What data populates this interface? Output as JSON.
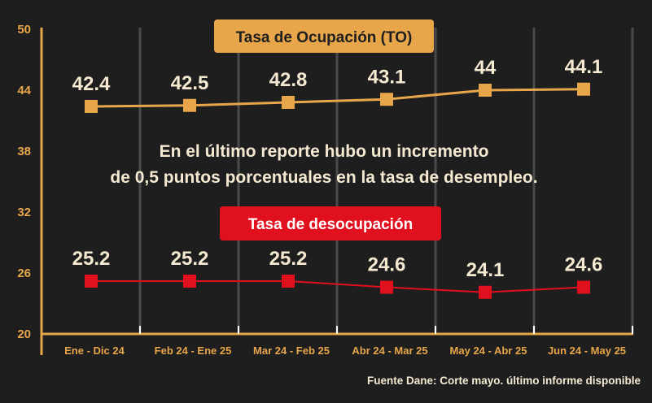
{
  "chart_data": {
    "type": "line",
    "categories": [
      "Ene - Dic 24",
      "Feb 24 - Ene 25",
      "Mar 24 - Feb 25",
      "Abr 24 - Mar 25",
      "May 24 - Abr 25",
      "Jun 24 - May 25"
    ],
    "series": [
      {
        "name": "Tasa de Ocupación (TO)",
        "values": [
          42.4,
          42.5,
          42.8,
          43.1,
          44,
          44.1
        ],
        "labels": [
          "42.4",
          "42.5",
          "42.8",
          "43.1",
          "44",
          "44.1"
        ],
        "color": "#e8a64a"
      },
      {
        "name": "Tasa de desocupación",
        "values": [
          25.2,
          25.2,
          25.2,
          24.6,
          24.1,
          24.6
        ],
        "labels": [
          "25.2",
          "25.2",
          "25.2",
          "24.6",
          "24.1",
          "24.6"
        ],
        "color": "#e0101e"
      }
    ],
    "yticks": [
      "50",
      "44",
      "38",
      "32",
      "26",
      "20"
    ],
    "ylim": [
      20,
      50
    ],
    "grid": "vertical",
    "annotation": [
      "En el último reporte hubo un incremento",
      "de 0,5 puntos porcentuales en la tasa de desempleo."
    ],
    "source": "Fuente Dane: Corte mayo. último informe disponible"
  },
  "colors": {
    "background": "#1e1e1e",
    "axis": "#e8a64a",
    "grid": "#4a4a4a",
    "text": "#f5e9d2"
  }
}
